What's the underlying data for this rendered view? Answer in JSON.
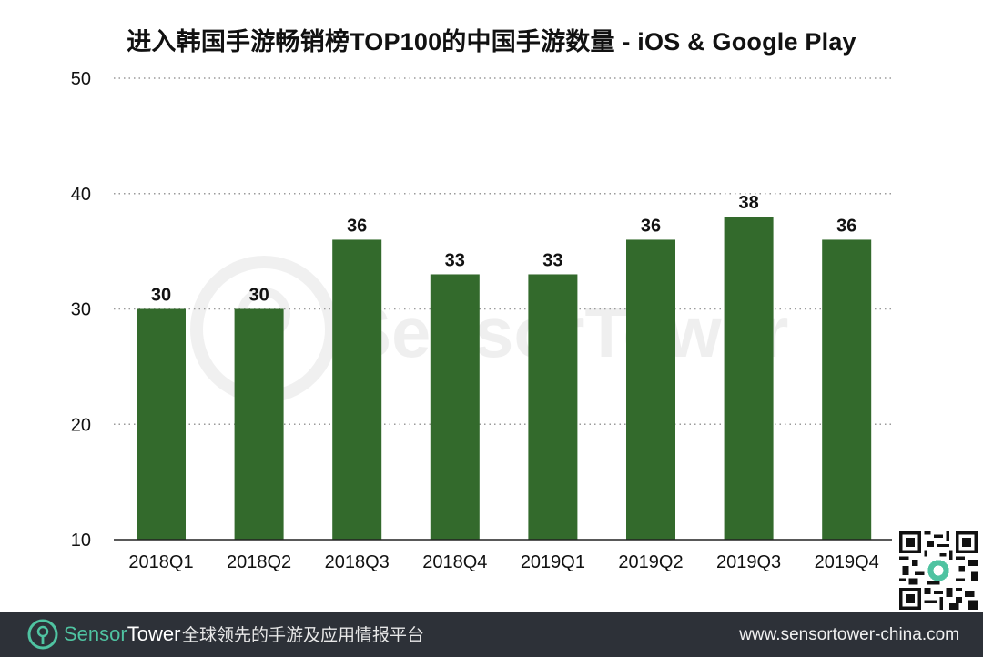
{
  "chart_data": {
    "type": "bar",
    "title": "进入韩国手游畅销榜TOP100的中国手游数量 - iOS & Google Play",
    "categories": [
      "2018Q1",
      "2018Q2",
      "2018Q3",
      "2018Q4",
      "2019Q1",
      "2019Q2",
      "2019Q3",
      "2019Q4"
    ],
    "values": [
      30,
      30,
      36,
      33,
      33,
      36,
      38,
      36
    ],
    "data_labels": [
      "30",
      "30",
      "36",
      "33",
      "33",
      "36",
      "38",
      "36"
    ],
    "ylim": [
      10,
      50
    ],
    "yticks": [
      10,
      20,
      30,
      40,
      50
    ],
    "ytick_labels": [
      "10",
      "20",
      "30",
      "40",
      "50"
    ],
    "xlabel": "",
    "ylabel": "",
    "grid": "dotted horizontal",
    "bar_color": "#336a2c"
  },
  "watermark": {
    "text": "SensorTower"
  },
  "footer": {
    "brand_part1": "Sensor",
    "brand_part2": "Tower",
    "slogan": "全球领先的手游及应用情报平台",
    "url": "www.sensortower-china.com",
    "background": "#2d3138",
    "accent": "#4fc3a1"
  },
  "icons": {
    "logo": "sensortower-logo-icon",
    "qr": "qr-code-icon"
  }
}
